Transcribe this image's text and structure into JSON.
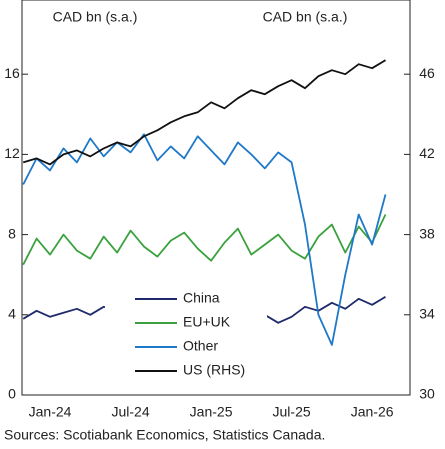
{
  "chart_data": {
    "type": "line",
    "y_label": "CAD bn (s.a.)",
    "y2_label": "CAD bn (s.a.)",
    "source": "Sources: Scotiabank Economics, Statistics Canada.",
    "categories": [
      null,
      null,
      "Jan-24",
      null,
      null,
      null,
      null,
      null,
      "Jul-24",
      null,
      null,
      null,
      null,
      null,
      "Jan-25",
      null,
      null,
      null,
      null,
      null,
      "Jul-25",
      null,
      null,
      null,
      null,
      null,
      "Jan-26",
      null
    ],
    "series": [
      {
        "name": "China",
        "color": "#1f2a6b",
        "values": [
          3.8,
          4.2,
          3.9,
          4.1,
          4.3,
          4.0,
          4.4,
          4.2,
          4.5,
          4.1,
          4.3,
          4.6,
          4.4,
          4.2,
          4.5,
          4.7,
          4.3,
          4.1,
          4.0,
          3.6,
          3.9,
          4.4,
          4.2,
          4.6,
          4.3,
          4.8,
          4.5,
          4.9
        ]
      },
      {
        "name": "EU+UK",
        "color": "#3aa13e",
        "values": [
          6.5,
          7.8,
          7.0,
          8.0,
          7.2,
          6.8,
          7.9,
          7.1,
          8.2,
          7.4,
          6.9,
          7.7,
          8.1,
          7.3,
          6.7,
          7.6,
          8.3,
          7.0,
          7.5,
          8.0,
          7.2,
          6.8,
          7.9,
          8.5,
          7.1,
          8.4,
          7.6,
          9.0
        ]
      },
      {
        "name": "Other",
        "color": "#1f78c8",
        "values": [
          10.5,
          11.8,
          11.2,
          12.3,
          11.6,
          12.8,
          11.9,
          12.6,
          12.1,
          13.0,
          11.7,
          12.4,
          11.8,
          12.9,
          12.2,
          11.5,
          12.6,
          12.0,
          11.3,
          12.1,
          11.6,
          8.5,
          4.0,
          2.5,
          6.0,
          9.0,
          7.5,
          10.0
        ]
      },
      {
        "name": "US (RHS)",
        "color": "#111111",
        "axis": "y2",
        "values": [
          41.6,
          41.8,
          41.5,
          42.0,
          42.2,
          41.9,
          42.3,
          42.6,
          42.4,
          42.9,
          43.2,
          43.6,
          43.9,
          44.1,
          44.6,
          44.3,
          44.8,
          45.2,
          45.0,
          45.4,
          45.7,
          45.3,
          45.9,
          46.2,
          46.0,
          46.5,
          46.3,
          46.7
        ]
      }
    ],
    "ylim": [
      0,
      19.7
    ],
    "yticks": [
      0,
      4,
      8,
      12,
      16
    ],
    "y2lim": [
      30,
      49.7
    ],
    "y2ticks": [
      30,
      34,
      38,
      42,
      46
    ],
    "legend": "lower center",
    "grid": false
  }
}
